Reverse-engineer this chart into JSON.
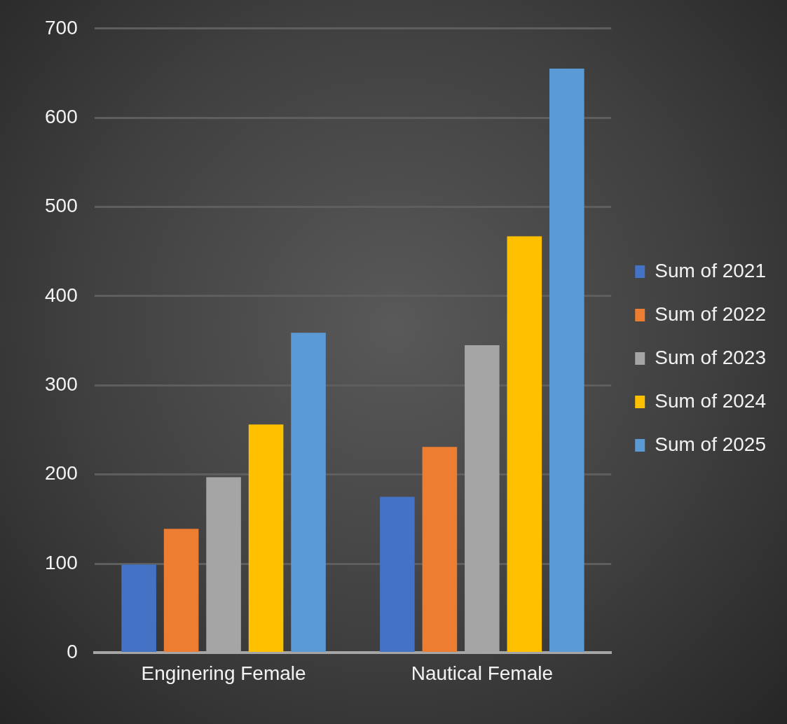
{
  "chart_data": {
    "type": "bar",
    "categories": [
      "Enginering Female",
      "Nautical Female"
    ],
    "series": [
      {
        "name": "Sum of 2021",
        "color": "#4472c4",
        "values": [
          99,
          175
        ]
      },
      {
        "name": "Sum of 2022",
        "color": "#ed7d31",
        "values": [
          139,
          231
        ]
      },
      {
        "name": "Sum of 2023",
        "color": "#a5a5a5",
        "values": [
          197,
          345
        ]
      },
      {
        "name": "Sum of 2024",
        "color": "#ffc000",
        "values": [
          256,
          467
        ]
      },
      {
        "name": "Sum of 2025",
        "color": "#5b9bd5",
        "values": [
          359,
          655
        ]
      }
    ],
    "ylim": [
      0,
      700
    ],
    "yticks": [
      0,
      100,
      200,
      300,
      400,
      500,
      600,
      700
    ],
    "grid": "y",
    "legend": "right"
  }
}
